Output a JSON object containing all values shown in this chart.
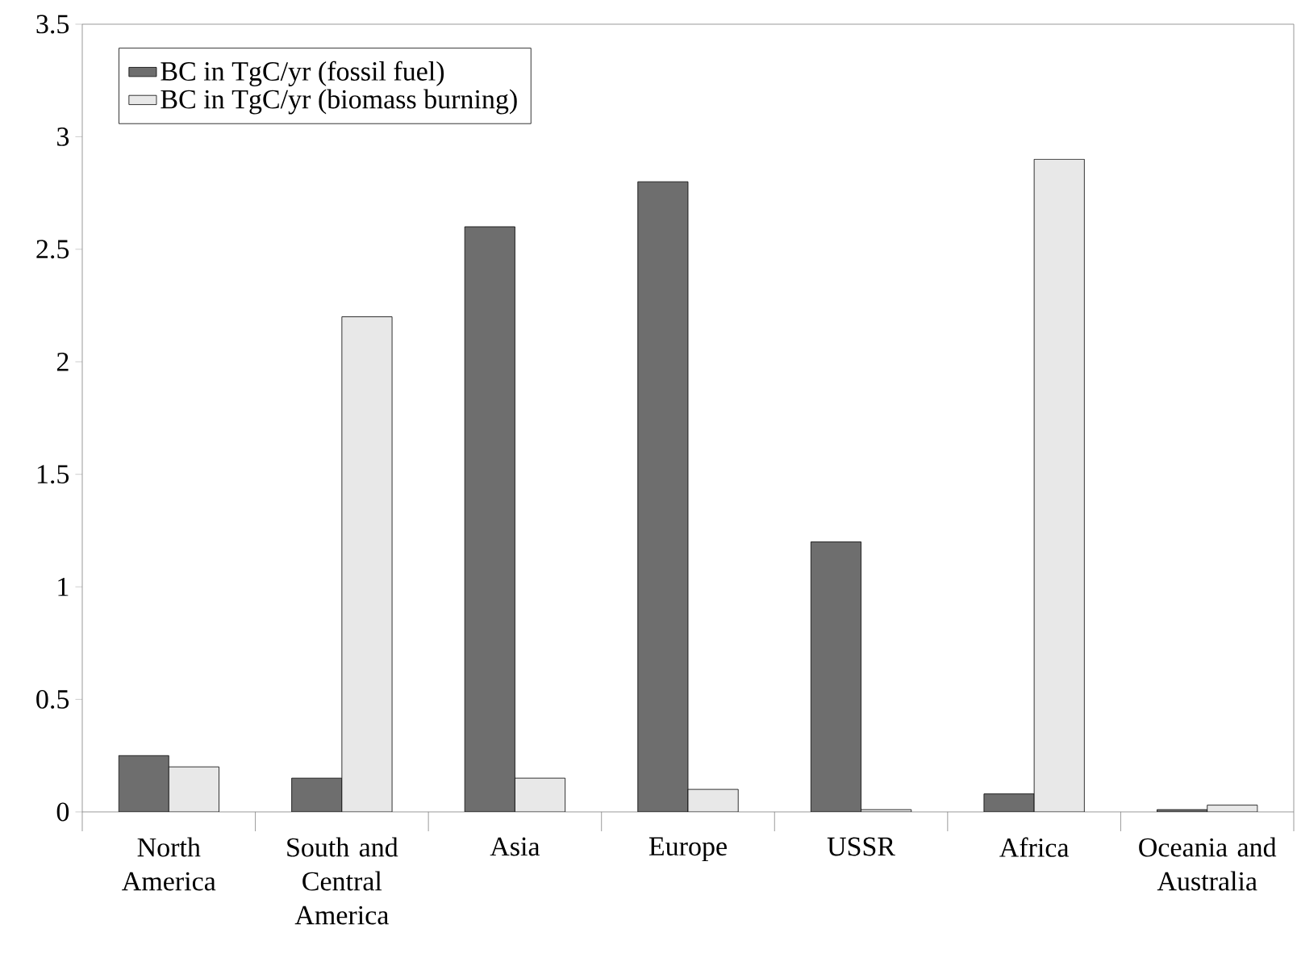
{
  "chart_data": {
    "type": "bar",
    "categories": [
      "North America",
      "South and Central America",
      "Asia",
      "Europe",
      "USSR",
      "Africa",
      "Oceania and Australia"
    ],
    "series": [
      {
        "name": "BC in TgC/yr (fossil fuel)",
        "color": "#6e6e6e",
        "values": [
          0.25,
          0.15,
          2.6,
          2.8,
          1.2,
          0.08,
          0.01
        ]
      },
      {
        "name": "BC in TgC/yr (biomass burning)",
        "color": "#e8e8e8",
        "values": [
          0.2,
          2.2,
          0.15,
          0.1,
          0.01,
          2.9,
          0.03
        ]
      }
    ],
    "ylim": [
      0,
      3.5
    ],
    "yticks": [
      0,
      0.5,
      1,
      1.5,
      2,
      2.5,
      3,
      3.5
    ],
    "grid": false,
    "legend": "top left"
  }
}
